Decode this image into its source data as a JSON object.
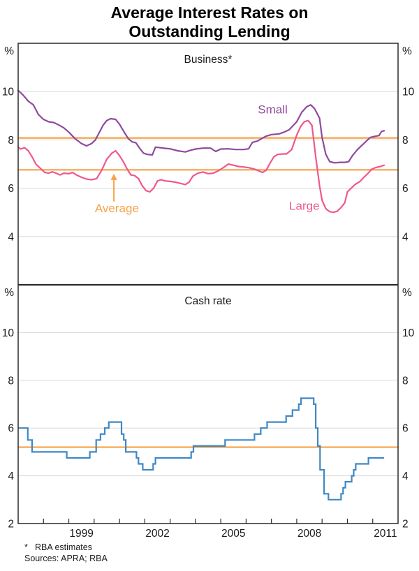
{
  "title": {
    "line1": "Average Interest Rates on",
    "line2": "Outstanding Lending"
  },
  "footnote": {
    "marker": "*",
    "text": "RBA estimates",
    "sources": "Sources: APRA; RBA"
  },
  "colors": {
    "small": "#8f4a9d",
    "large": "#f0578f",
    "average": "#f7a246",
    "cash_rate": "#3f88c5",
    "grid": "#d8d8d8",
    "frame": "#2a2a2a",
    "text": "#1a1a1a"
  },
  "chart_data": [
    {
      "id": "business",
      "type": "line",
      "panel_label": "Business*",
      "unit": "%",
      "ylim": [
        2,
        12
      ],
      "yticks": [
        10,
        8,
        6,
        4
      ],
      "xlim": [
        1997,
        2012
      ],
      "xtick_labels": [
        1999,
        2002,
        2005,
        2008,
        2011
      ],
      "grid": true,
      "legend_position": "inline-labels",
      "series": [
        {
          "name": "Small",
          "color_key": "small",
          "x": [
            1997.0,
            1997.2,
            1997.4,
            1997.6,
            1997.8,
            1998.0,
            1998.2,
            1998.4,
            1998.6,
            1998.8,
            1999.0,
            1999.25,
            1999.5,
            1999.7,
            1999.9,
            2000.05,
            2000.2,
            2000.35,
            2000.5,
            2000.65,
            2000.85,
            2001.0,
            2001.2,
            2001.35,
            2001.5,
            2001.65,
            2001.8,
            2001.95,
            2002.1,
            2002.3,
            2002.42,
            2002.6,
            2002.8,
            2003.0,
            2003.3,
            2003.6,
            2003.8,
            2004.0,
            2004.3,
            2004.6,
            2004.8,
            2005.0,
            2005.3,
            2005.6,
            2005.9,
            2006.1,
            2006.25,
            2006.45,
            2006.6,
            2006.8,
            2007.0,
            2007.3,
            2007.5,
            2007.7,
            2008.0,
            2008.2,
            2008.4,
            2008.55,
            2008.7,
            2008.9,
            2009.0,
            2009.15,
            2009.3,
            2009.5,
            2009.7,
            2009.9,
            2010.05,
            2010.2,
            2010.4,
            2010.6,
            2010.75,
            2010.9,
            2011.1,
            2011.25,
            2011.35,
            2011.45
          ],
          "y": [
            10.05,
            9.85,
            9.6,
            9.45,
            9.05,
            8.85,
            8.75,
            8.72,
            8.62,
            8.5,
            8.32,
            8.05,
            7.85,
            7.75,
            7.85,
            8.0,
            8.3,
            8.6,
            8.8,
            8.88,
            8.85,
            8.65,
            8.3,
            8.05,
            7.92,
            7.88,
            7.65,
            7.45,
            7.4,
            7.38,
            7.7,
            7.68,
            7.65,
            7.63,
            7.55,
            7.5,
            7.57,
            7.62,
            7.66,
            7.66,
            7.52,
            7.62,
            7.63,
            7.6,
            7.6,
            7.63,
            7.9,
            7.95,
            8.05,
            8.16,
            8.22,
            8.25,
            8.32,
            8.42,
            8.75,
            9.15,
            9.38,
            9.45,
            9.3,
            8.9,
            8.1,
            7.4,
            7.1,
            7.05,
            7.07,
            7.07,
            7.1,
            7.35,
            7.6,
            7.8,
            7.95,
            8.1,
            8.15,
            8.18,
            8.35,
            8.38
          ]
        },
        {
          "name": "Large",
          "color_key": "large",
          "x": [
            1997.0,
            1997.1,
            1997.25,
            1997.4,
            1997.55,
            1997.7,
            1997.9,
            1998.05,
            1998.2,
            1998.35,
            1998.5,
            1998.65,
            1998.8,
            1999.0,
            1999.15,
            1999.3,
            1999.5,
            1999.7,
            1999.9,
            2000.1,
            2000.3,
            2000.5,
            2000.7,
            2000.85,
            2001.0,
            2001.15,
            2001.3,
            2001.45,
            2001.6,
            2001.75,
            2001.9,
            2002.05,
            2002.2,
            2002.35,
            2002.5,
            2002.65,
            2002.8,
            2003.0,
            2003.2,
            2003.4,
            2003.6,
            2003.75,
            2003.9,
            2004.1,
            2004.3,
            2004.5,
            2004.7,
            2004.9,
            2005.1,
            2005.3,
            2005.5,
            2005.7,
            2005.9,
            2006.1,
            2006.3,
            2006.5,
            2006.65,
            2006.8,
            2006.95,
            2007.1,
            2007.25,
            2007.45,
            2007.6,
            2007.8,
            2008.0,
            2008.15,
            2008.3,
            2008.45,
            2008.6,
            2008.75,
            2008.9,
            2009.0,
            2009.15,
            2009.3,
            2009.45,
            2009.6,
            2009.75,
            2009.9,
            2010.0,
            2010.15,
            2010.3,
            2010.5,
            2010.65,
            2010.8,
            2010.95,
            2011.1,
            2011.3,
            2011.45
          ],
          "y": [
            7.7,
            7.62,
            7.68,
            7.55,
            7.3,
            7.0,
            6.8,
            6.65,
            6.62,
            6.68,
            6.62,
            6.55,
            6.62,
            6.6,
            6.65,
            6.55,
            6.45,
            6.38,
            6.35,
            6.4,
            6.75,
            7.2,
            7.45,
            7.55,
            7.35,
            7.1,
            6.8,
            6.55,
            6.52,
            6.4,
            6.1,
            5.9,
            5.85,
            6.0,
            6.3,
            6.35,
            6.3,
            6.28,
            6.25,
            6.2,
            6.15,
            6.25,
            6.5,
            6.62,
            6.67,
            6.6,
            6.62,
            6.72,
            6.85,
            7.0,
            6.95,
            6.9,
            6.88,
            6.85,
            6.8,
            6.72,
            6.65,
            6.75,
            7.05,
            7.3,
            7.4,
            7.42,
            7.42,
            7.6,
            8.2,
            8.55,
            8.75,
            8.8,
            8.6,
            7.3,
            6.1,
            5.5,
            5.15,
            5.03,
            5.0,
            5.05,
            5.2,
            5.4,
            5.85,
            6.0,
            6.15,
            6.28,
            6.45,
            6.6,
            6.78,
            6.85,
            6.9,
            6.95
          ]
        }
      ],
      "hlines": [
        {
          "name": "Average small",
          "value": 8.08,
          "color_key": "average"
        },
        {
          "name": "Average large",
          "value": 6.76,
          "color_key": "average"
        }
      ],
      "annotations": [
        {
          "text": "Small",
          "color_key": "small",
          "x": 2007.05,
          "y": 9.1
        },
        {
          "text": "Large",
          "color_key": "large",
          "x": 2008.3,
          "y": 5.1
        },
        {
          "text": "Average",
          "color_key": "average",
          "x": 2000.9,
          "y": 5.0,
          "arrow": {
            "x": 2000.78,
            "y_from": 5.45,
            "y_to": 6.6
          }
        }
      ]
    },
    {
      "id": "cash-rate",
      "type": "step",
      "panel_label": "Cash rate",
      "unit": "%",
      "ylim": [
        2,
        12
      ],
      "yticks": [
        10,
        8,
        6,
        4,
        2
      ],
      "xlim": [
        1997,
        2012
      ],
      "xtick_labels": [
        1999,
        2002,
        2005,
        2008,
        2011
      ],
      "grid": true,
      "series": [
        {
          "name": "Cash rate",
          "color_key": "cash_rate",
          "end_x": 2011.45,
          "steps": [
            [
              1997.0,
              6.0
            ],
            [
              1997.38,
              5.5
            ],
            [
              1997.55,
              5.0
            ],
            [
              1998.92,
              4.75
            ],
            [
              1999.83,
              5.0
            ],
            [
              2000.08,
              5.5
            ],
            [
              2000.25,
              5.75
            ],
            [
              2000.42,
              6.0
            ],
            [
              2000.58,
              6.25
            ],
            [
              2001.08,
              5.75
            ],
            [
              2001.17,
              5.5
            ],
            [
              2001.25,
              5.0
            ],
            [
              2001.67,
              4.75
            ],
            [
              2001.75,
              4.5
            ],
            [
              2001.92,
              4.25
            ],
            [
              2002.33,
              4.5
            ],
            [
              2002.42,
              4.75
            ],
            [
              2003.83,
              5.0
            ],
            [
              2003.92,
              5.25
            ],
            [
              2005.17,
              5.5
            ],
            [
              2006.33,
              5.75
            ],
            [
              2006.58,
              6.0
            ],
            [
              2006.83,
              6.25
            ],
            [
              2007.58,
              6.5
            ],
            [
              2007.83,
              6.75
            ],
            [
              2008.08,
              7.0
            ],
            [
              2008.17,
              7.25
            ],
            [
              2008.67,
              7.0
            ],
            [
              2008.75,
              6.0
            ],
            [
              2008.83,
              5.25
            ],
            [
              2008.92,
              4.25
            ],
            [
              2009.08,
              3.25
            ],
            [
              2009.25,
              3.0
            ],
            [
              2009.75,
              3.25
            ],
            [
              2009.83,
              3.5
            ],
            [
              2009.92,
              3.75
            ],
            [
              2010.17,
              4.0
            ],
            [
              2010.25,
              4.25
            ],
            [
              2010.33,
              4.5
            ],
            [
              2010.83,
              4.75
            ]
          ]
        }
      ],
      "hlines": [
        {
          "name": "Average cash rate",
          "value": 5.2,
          "color_key": "average"
        }
      ],
      "annotations": []
    }
  ]
}
